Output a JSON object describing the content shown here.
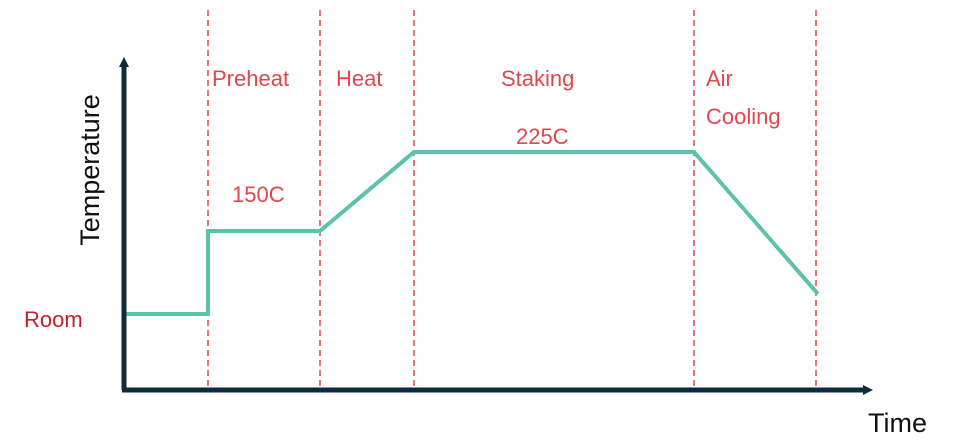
{
  "axes": {
    "y_title": "Temperature",
    "x_title": "Time"
  },
  "phases": {
    "preheat": "Preheat",
    "heat": "Heat",
    "staking": "Staking",
    "air_cooling_line1": "Air",
    "air_cooling_line2": "Cooling"
  },
  "temperatures": {
    "room": "Room",
    "preheat": "150C",
    "staking": "225C"
  },
  "colors": {
    "axis": "#0f2a3a",
    "profile_line": "#5cc2a8",
    "phase_divider": "#e0474c",
    "phase_label": "#e0474c",
    "room_label": "#c0202a"
  }
}
